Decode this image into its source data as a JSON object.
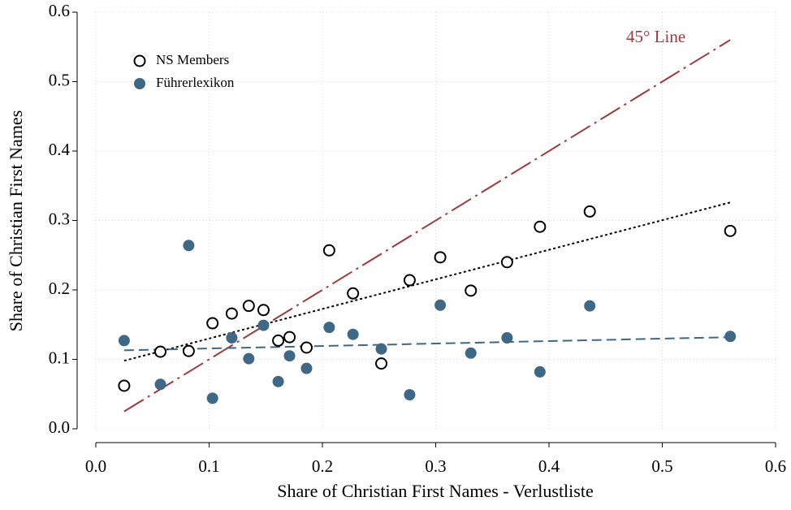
{
  "chart_data": {
    "type": "scatter",
    "xlabel": "Share of Christian First Names - Verlustliste",
    "ylabel": "Share of Christian First Names",
    "xlim": [
      0,
      0.6
    ],
    "ylim": [
      0,
      0.6
    ],
    "xticks": [
      {
        "value": 0,
        "label": "0.0"
      },
      0.1,
      0.2,
      0.3,
      0.4,
      0.5,
      0.6
    ],
    "yticks": [
      {
        "value": 0,
        "label": "0.0"
      },
      0.1,
      0.2,
      0.3,
      0.4,
      0.5,
      0.6
    ],
    "grid": true,
    "legend": "upper left",
    "series": [
      {
        "name": "NS Members",
        "color": "#000000",
        "marker": "hollow",
        "x": [
          0.025,
          0.057,
          0.082,
          0.103,
          0.12,
          0.135,
          0.148,
          0.161,
          0.171,
          0.186,
          0.206,
          0.227,
          0.252,
          0.277,
          0.304,
          0.331,
          0.363,
          0.392,
          0.436,
          0.56
        ],
        "values": [
          0.062,
          0.111,
          0.112,
          0.152,
          0.166,
          0.177,
          0.171,
          0.127,
          0.132,
          0.117,
          0.257,
          0.195,
          0.094,
          0.214,
          0.247,
          0.199,
          0.24,
          0.291,
          0.313,
          0.285
        ]
      },
      {
        "name": "Führerlexikon",
        "color": "#3e6886",
        "marker": "filled",
        "x": [
          0.025,
          0.057,
          0.082,
          0.103,
          0.12,
          0.135,
          0.148,
          0.161,
          0.171,
          0.186,
          0.206,
          0.227,
          0.252,
          0.277,
          0.304,
          0.331,
          0.363,
          0.392,
          0.436,
          0.56
        ],
        "values": [
          0.127,
          0.064,
          0.264,
          0.044,
          0.131,
          0.101,
          0.149,
          0.068,
          0.105,
          0.087,
          0.146,
          0.136,
          0.115,
          0.049,
          0.178,
          0.109,
          0.131,
          0.082,
          0.177,
          0.133
        ]
      }
    ],
    "lines": [
      {
        "label": "45° Line",
        "color": "#9b3a3e",
        "style": "dash-dot",
        "x": [
          0.025,
          0.56
        ],
        "values": [
          0.025,
          0.56
        ]
      },
      {
        "color": "#000000",
        "style": "dot",
        "x": [
          0.025,
          0.56
        ],
        "values": [
          0.098,
          0.326
        ]
      },
      {
        "color": "#3e6886",
        "style": "dash",
        "x": [
          0.025,
          0.56
        ],
        "values": [
          0.113,
          0.132
        ]
      }
    ]
  }
}
